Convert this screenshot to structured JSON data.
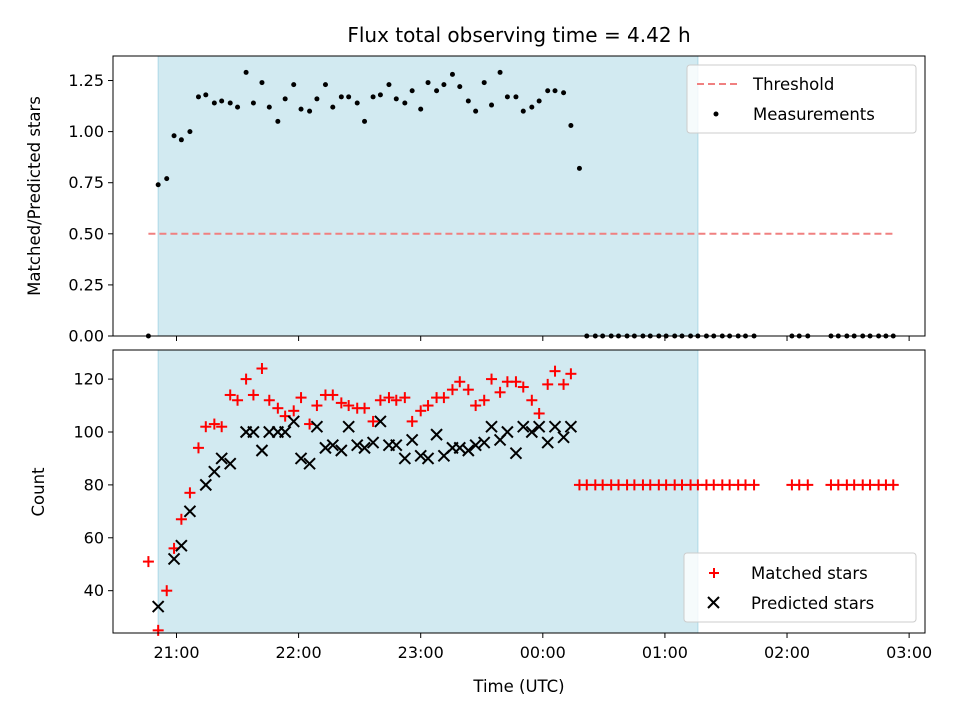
{
  "chart_data": {
    "title": "Flux total observing time = 4.42 h",
    "xlabel": "Time (UTC)",
    "x_unit": "hours after 00:00 UTC (negative = previous day)",
    "xlim": [
      -3.52,
      3.13
    ],
    "xticks": [
      {
        "v": -3,
        "label": "21:00"
      },
      {
        "v": -2,
        "label": "22:00"
      },
      {
        "v": -1,
        "label": "23:00"
      },
      {
        "v": 0,
        "label": "00:00"
      },
      {
        "v": 1,
        "label": "01:00"
      },
      {
        "v": 2,
        "label": "02:00"
      },
      {
        "v": 3,
        "label": "03:00"
      }
    ],
    "observing_window": {
      "start": -3.15,
      "end": 1.27,
      "color": "#add8e6"
    },
    "panels": [
      {
        "type": "scatter",
        "ylabel": "Matched/Predicted stars",
        "ylim": [
          0,
          1.37
        ],
        "yticks": [
          "0.00",
          "0.25",
          "0.50",
          "0.75",
          "1.00",
          "1.25"
        ],
        "threshold": {
          "name": "Threshold",
          "value": 0.5,
          "x_range": [
            -3.23,
            2.87
          ],
          "color": "#f08080"
        },
        "legend_position": "upper right",
        "series": [
          {
            "name": "Measurements",
            "color": "#000000",
            "x": [
              -3.23,
              -3.15,
              -3.08,
              -3.02,
              -2.96,
              -2.89,
              -2.82,
              -2.76,
              -2.69,
              -2.63,
              -2.56,
              -2.5,
              -2.43,
              -2.37,
              -2.3,
              -2.24,
              -2.17,
              -2.11,
              -2.04,
              -1.98,
              -1.91,
              -1.85,
              -1.78,
              -1.72,
              -1.65,
              -1.59,
              -1.52,
              -1.46,
              -1.39,
              -1.33,
              -1.26,
              -1.2,
              -1.13,
              -1.07,
              -1.0,
              -0.94,
              -0.87,
              -0.81,
              -0.74,
              -0.68,
              -0.61,
              -0.55,
              -0.48,
              -0.42,
              -0.35,
              -0.29,
              -0.22,
              -0.16,
              -0.09,
              -0.03,
              0.04,
              0.1,
              0.17,
              0.23,
              0.3,
              0.36,
              0.43,
              0.49,
              0.56,
              0.62,
              0.69,
              0.75,
              0.82,
              0.88,
              0.95,
              1.01,
              1.08,
              1.14,
              1.21,
              1.27,
              1.34,
              1.4,
              1.47,
              1.53,
              1.6,
              1.66,
              1.73,
              2.04,
              2.1,
              2.17,
              2.36,
              2.42,
              2.49,
              2.55,
              2.62,
              2.68,
              2.75,
              2.81,
              2.87
            ],
            "y": [
              0.0,
              0.74,
              0.77,
              0.98,
              0.96,
              1.0,
              1.17,
              1.18,
              1.14,
              1.15,
              1.14,
              1.12,
              1.29,
              1.14,
              1.24,
              1.12,
              1.05,
              1.16,
              1.23,
              1.11,
              1.1,
              1.16,
              1.23,
              1.12,
              1.17,
              1.17,
              1.14,
              1.05,
              1.17,
              1.18,
              1.23,
              1.16,
              1.14,
              1.2,
              1.11,
              1.24,
              1.2,
              1.23,
              1.28,
              1.22,
              1.15,
              1.1,
              1.24,
              1.13,
              1.29,
              1.17,
              1.17,
              1.1,
              1.12,
              1.15,
              1.2,
              1.2,
              1.19,
              1.03,
              0.82,
              0.0,
              0.0,
              0.0,
              0.0,
              0.0,
              0.0,
              0.0,
              0.0,
              0.0,
              0.0,
              0.0,
              0.0,
              0.0,
              0.0,
              0.0,
              0.0,
              0.0,
              0.0,
              0.0,
              0.0,
              0.0,
              0.0,
              0.0,
              0.0,
              0.0,
              0.0,
              0.0,
              0.0,
              0.0,
              0.0,
              0.0,
              0.0,
              0.0,
              0.0
            ]
          }
        ]
      },
      {
        "type": "scatter",
        "ylabel": "Count",
        "ylim": [
          24,
          131
        ],
        "yticks": [
          "40",
          "60",
          "80",
          "100",
          "120"
        ],
        "legend_position": "lower right",
        "series": [
          {
            "name": "Matched stars",
            "marker": "+",
            "color": "#ff0000",
            "x": [
              -3.23,
              -3.15,
              -3.08,
              -3.02,
              -2.96,
              -2.89,
              -2.82,
              -2.76,
              -2.69,
              -2.63,
              -2.56,
              -2.5,
              -2.43,
              -2.37,
              -2.3,
              -2.24,
              -2.17,
              -2.11,
              -2.04,
              -1.98,
              -1.91,
              -1.85,
              -1.78,
              -1.72,
              -1.65,
              -1.59,
              -1.52,
              -1.46,
              -1.39,
              -1.33,
              -1.26,
              -1.2,
              -1.13,
              -1.07,
              -1.0,
              -0.94,
              -0.87,
              -0.81,
              -0.74,
              -0.68,
              -0.61,
              -0.55,
              -0.48,
              -0.42,
              -0.35,
              -0.29,
              -0.22,
              -0.16,
              -0.09,
              -0.03,
              0.04,
              0.1,
              0.17,
              0.23,
              0.3,
              0.36,
              0.43,
              0.49,
              0.56,
              0.62,
              0.69,
              0.75,
              0.82,
              0.88,
              0.95,
              1.01,
              1.08,
              1.14,
              1.21,
              1.27,
              1.34,
              1.4,
              1.47,
              1.53,
              1.6,
              1.66,
              1.73,
              2.04,
              2.1,
              2.17,
              2.36,
              2.42,
              2.49,
              2.55,
              2.62,
              2.68,
              2.75,
              2.81,
              2.87
            ],
            "y": [
              51,
              25,
              40,
              56,
              67,
              77,
              94,
              102,
              103,
              102,
              114,
              112,
              120,
              114,
              124,
              112,
              109,
              106,
              108,
              113,
              103,
              110,
              114,
              114,
              111,
              110,
              109,
              109,
              104,
              112,
              113,
              112,
              113,
              104,
              108,
              110,
              113,
              113,
              116,
              119,
              116,
              110,
              112,
              120,
              115,
              119,
              119,
              117,
              112,
              107,
              118,
              123,
              118,
              122,
              80,
              80,
              80,
              80,
              80,
              80,
              80,
              80,
              80,
              80,
              80,
              80,
              80,
              80,
              80,
              80,
              80,
              80,
              80,
              80,
              80,
              80,
              80,
              80,
              80,
              80,
              80,
              80,
              80,
              80,
              80,
              80,
              80,
              80,
              80
            ]
          },
          {
            "name": "Predicted stars",
            "marker": "x",
            "color": "#000000",
            "x": [
              -3.15,
              -3.02,
              -2.96,
              -2.89,
              -2.76,
              -2.69,
              -2.63,
              -2.56,
              -2.43,
              -2.37,
              -2.3,
              -2.24,
              -2.17,
              -2.11,
              -2.04,
              -1.98,
              -1.91,
              -1.85,
              -1.78,
              -1.72,
              -1.65,
              -1.59,
              -1.52,
              -1.46,
              -1.39,
              -1.33,
              -1.26,
              -1.2,
              -1.13,
              -1.07,
              -1.0,
              -0.94,
              -0.87,
              -0.81,
              -0.74,
              -0.68,
              -0.61,
              -0.55,
              -0.48,
              -0.42,
              -0.35,
              -0.29,
              -0.22,
              -0.16,
              -0.09,
              -0.03,
              0.04,
              0.1,
              0.17,
              0.23
            ],
            "y": [
              34,
              52,
              57,
              70,
              80,
              85,
              90,
              88,
              100,
              100,
              93,
              100,
              100,
              100,
              104,
              90,
              88,
              102,
              94,
              95,
              93,
              102,
              95,
              94,
              96,
              104,
              95,
              95,
              90,
              97,
              91,
              90,
              99,
              91,
              94,
              94,
              93,
              95,
              96,
              102,
              97,
              100,
              92,
              102,
              100,
              102,
              96,
              102,
              98,
              102
            ]
          }
        ]
      }
    ]
  }
}
